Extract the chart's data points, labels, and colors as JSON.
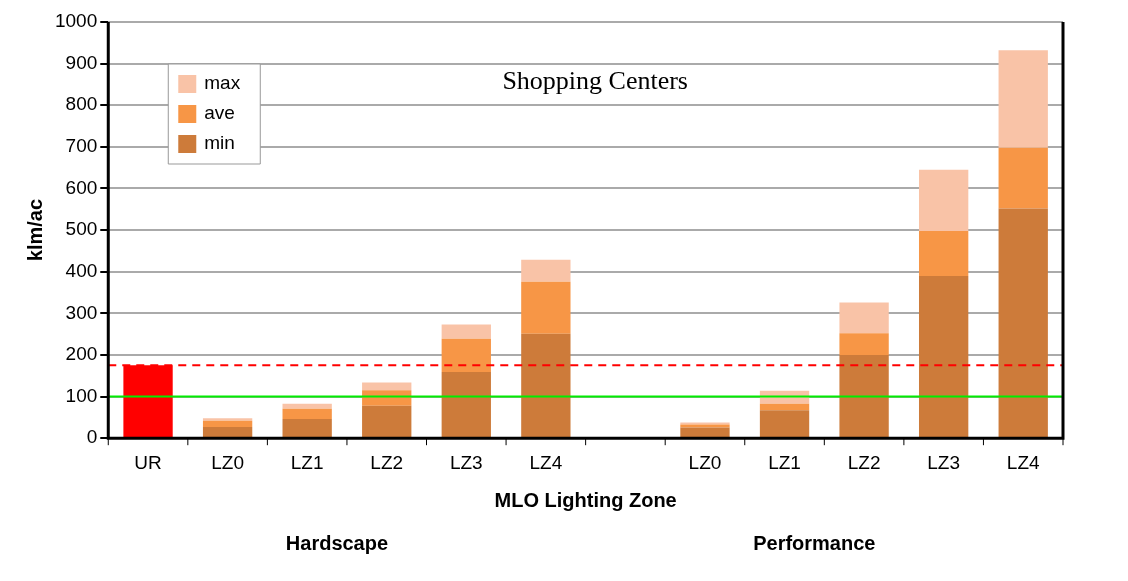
{
  "chart_data": {
    "type": "bar",
    "title": "Shopping Centers",
    "xlabel": "MLO Lighting Zone",
    "ylabel": "klm/ac",
    "categories": [
      "UR",
      "LZ0",
      "LZ1",
      "LZ2",
      "LZ3",
      "LZ4",
      null,
      "LZ0",
      "LZ1",
      "LZ2",
      "LZ3",
      "LZ4"
    ],
    "stacked": true,
    "series": [
      {
        "color": "#ff0000",
        "values": [
          175,
          null,
          null,
          null,
          null,
          null,
          null,
          null,
          null,
          null,
          null,
          null
        ]
      },
      {
        "name": "min",
        "color": "#cd7b3a",
        "values": [
          null,
          27,
          46,
          78,
          159,
          251,
          null,
          26,
          67,
          200,
          390,
          552
        ]
      },
      {
        "name": "ave",
        "color": "#f79646",
        "values": [
          null,
          15,
          25,
          37,
          80,
          125,
          null,
          7,
          16,
          52,
          108,
          146
        ]
      },
      {
        "name": "max",
        "color": "#f9c3a7",
        "values": [
          null,
          6,
          12,
          19,
          34,
          53,
          null,
          5,
          31,
          74,
          147,
          234
        ]
      }
    ],
    "ylim": [
      0,
      1000
    ],
    "yticks": [
      0,
      100,
      200,
      300,
      400,
      500,
      600,
      700,
      800,
      900,
      1000
    ],
    "grid": "y",
    "legend": "top left",
    "ref_lines": [
      {
        "axis": "y",
        "value": 175,
        "color": "#ff0000",
        "line_style": "dashed"
      },
      {
        "axis": "y",
        "value": 100,
        "color": "#00ee00",
        "line_style": "solid"
      }
    ],
    "annotations": [
      "Hardscape",
      "Performance"
    ]
  }
}
